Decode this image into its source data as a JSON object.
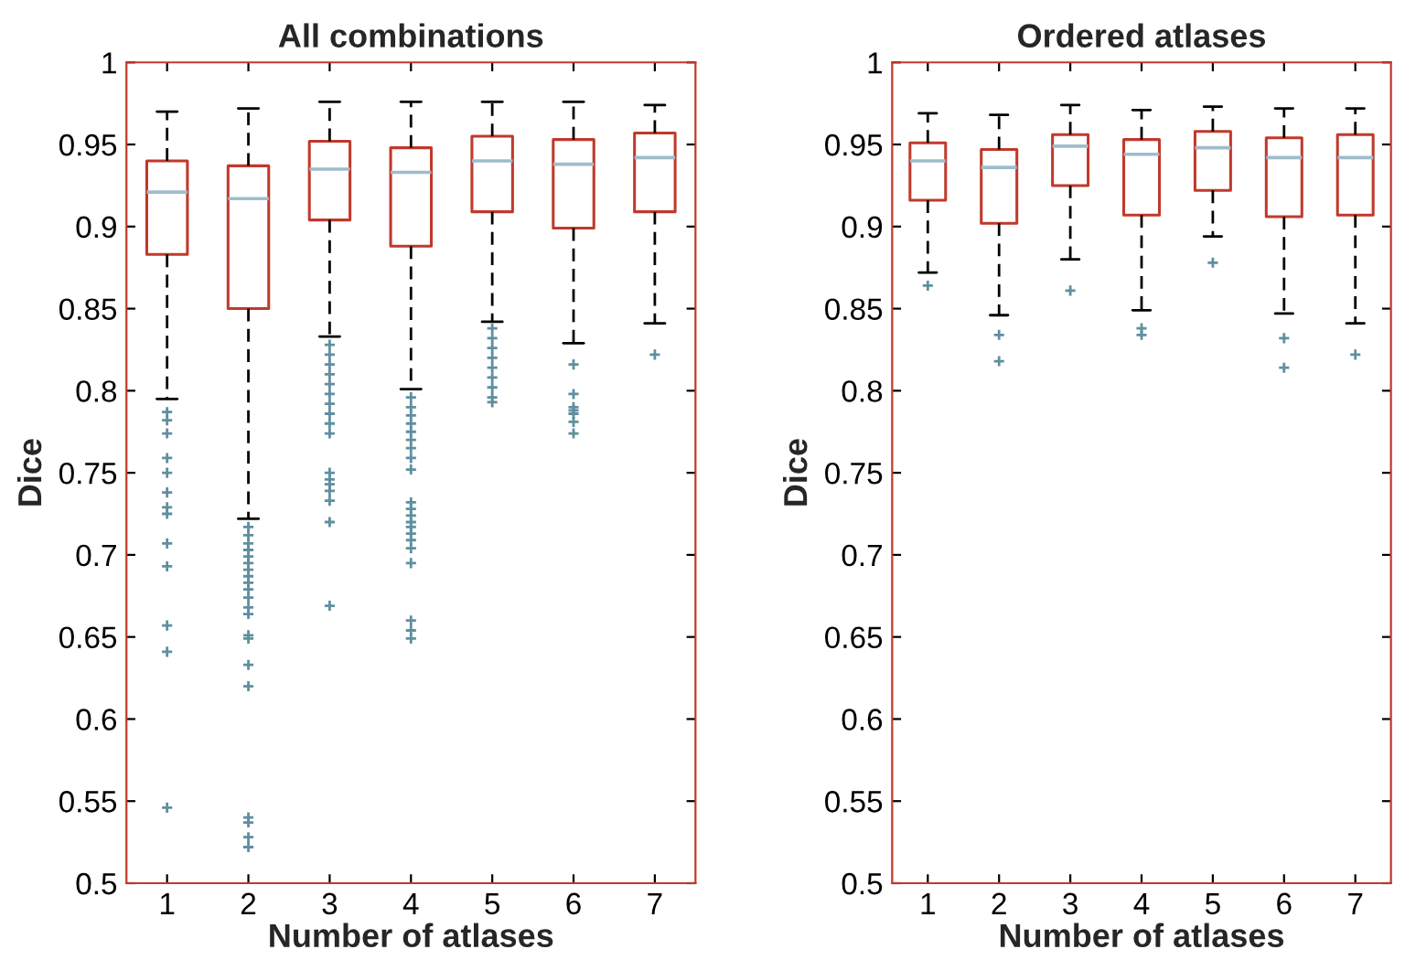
{
  "chart_data": [
    {
      "type": "box",
      "title": "All combinations",
      "xlabel": "Number of atlases",
      "ylabel": "Dice",
      "categories": [
        "1",
        "2",
        "3",
        "4",
        "5",
        "6",
        "7"
      ],
      "ylim": [
        0.5,
        1
      ],
      "yticks": [
        0.5,
        0.55,
        0.6,
        0.65,
        0.7,
        0.75,
        0.8,
        0.85,
        0.9,
        0.95,
        1
      ],
      "grid": false,
      "marker": "cross",
      "series": [
        {
          "color": "#c0392b",
          "boxes": [
            {
              "low": 0.795,
              "q1": 0.883,
              "median": 0.921,
              "q3": 0.94,
              "high": 0.97,
              "outliers": [
                0.787,
                0.782,
                0.774,
                0.759,
                0.75,
                0.738,
                0.729,
                0.725,
                0.707,
                0.693,
                0.657,
                0.641,
                0.546
              ]
            },
            {
              "low": 0.722,
              "q1": 0.85,
              "median": 0.917,
              "q3": 0.937,
              "high": 0.972,
              "outliers": [
                0.717,
                0.712,
                0.707,
                0.703,
                0.699,
                0.695,
                0.691,
                0.687,
                0.683,
                0.679,
                0.674,
                0.668,
                0.664,
                0.651,
                0.649,
                0.633,
                0.62,
                0.54,
                0.537,
                0.528,
                0.522
              ]
            },
            {
              "low": 0.833,
              "q1": 0.904,
              "median": 0.935,
              "q3": 0.952,
              "high": 0.976,
              "outliers": [
                0.828,
                0.822,
                0.816,
                0.81,
                0.804,
                0.798,
                0.792,
                0.786,
                0.78,
                0.774,
                0.75,
                0.746,
                0.743,
                0.739,
                0.733,
                0.72,
                0.669
              ]
            },
            {
              "low": 0.801,
              "q1": 0.888,
              "median": 0.933,
              "q3": 0.948,
              "high": 0.976,
              "outliers": [
                0.796,
                0.79,
                0.785,
                0.78,
                0.775,
                0.77,
                0.765,
                0.759,
                0.752,
                0.732,
                0.728,
                0.724,
                0.72,
                0.717,
                0.713,
                0.709,
                0.704,
                0.695,
                0.66,
                0.654,
                0.649
              ]
            },
            {
              "low": 0.842,
              "q1": 0.909,
              "median": 0.94,
              "q3": 0.955,
              "high": 0.976,
              "outliers": [
                0.838,
                0.832,
                0.826,
                0.82,
                0.814,
                0.808,
                0.802,
                0.796,
                0.793
              ]
            },
            {
              "low": 0.829,
              "q1": 0.899,
              "median": 0.938,
              "q3": 0.953,
              "high": 0.976,
              "outliers": [
                0.816,
                0.798,
                0.79,
                0.788,
                0.786,
                0.781,
                0.774
              ]
            },
            {
              "low": 0.841,
              "q1": 0.909,
              "median": 0.942,
              "q3": 0.957,
              "high": 0.974,
              "outliers": [
                0.822
              ]
            }
          ]
        }
      ]
    },
    {
      "type": "box",
      "title": "Ordered atlases",
      "xlabel": "Number of atlases",
      "ylabel": "Dice",
      "categories": [
        "1",
        "2",
        "3",
        "4",
        "5",
        "6",
        "7"
      ],
      "ylim": [
        0.5,
        1
      ],
      "yticks": [
        0.5,
        0.55,
        0.6,
        0.65,
        0.7,
        0.75,
        0.8,
        0.85,
        0.9,
        0.95,
        1
      ],
      "grid": false,
      "marker": "cross",
      "series": [
        {
          "color": "#c0392b",
          "boxes": [
            {
              "low": 0.872,
              "q1": 0.916,
              "median": 0.94,
              "q3": 0.951,
              "high": 0.969,
              "outliers": [
                0.864
              ]
            },
            {
              "low": 0.846,
              "q1": 0.902,
              "median": 0.936,
              "q3": 0.947,
              "high": 0.968,
              "outliers": [
                0.834,
                0.818
              ]
            },
            {
              "low": 0.88,
              "q1": 0.925,
              "median": 0.949,
              "q3": 0.956,
              "high": 0.974,
              "outliers": [
                0.861
              ]
            },
            {
              "low": 0.849,
              "q1": 0.907,
              "median": 0.944,
              "q3": 0.953,
              "high": 0.971,
              "outliers": [
                0.838,
                0.834
              ]
            },
            {
              "low": 0.894,
              "q1": 0.922,
              "median": 0.948,
              "q3": 0.958,
              "high": 0.973,
              "outliers": [
                0.878
              ]
            },
            {
              "low": 0.847,
              "q1": 0.906,
              "median": 0.942,
              "q3": 0.954,
              "high": 0.972,
              "outliers": [
                0.832,
                0.814
              ]
            },
            {
              "low": 0.841,
              "q1": 0.907,
              "median": 0.942,
              "q3": 0.956,
              "high": 0.972,
              "outliers": [
                0.822
              ]
            }
          ]
        }
      ]
    }
  ]
}
